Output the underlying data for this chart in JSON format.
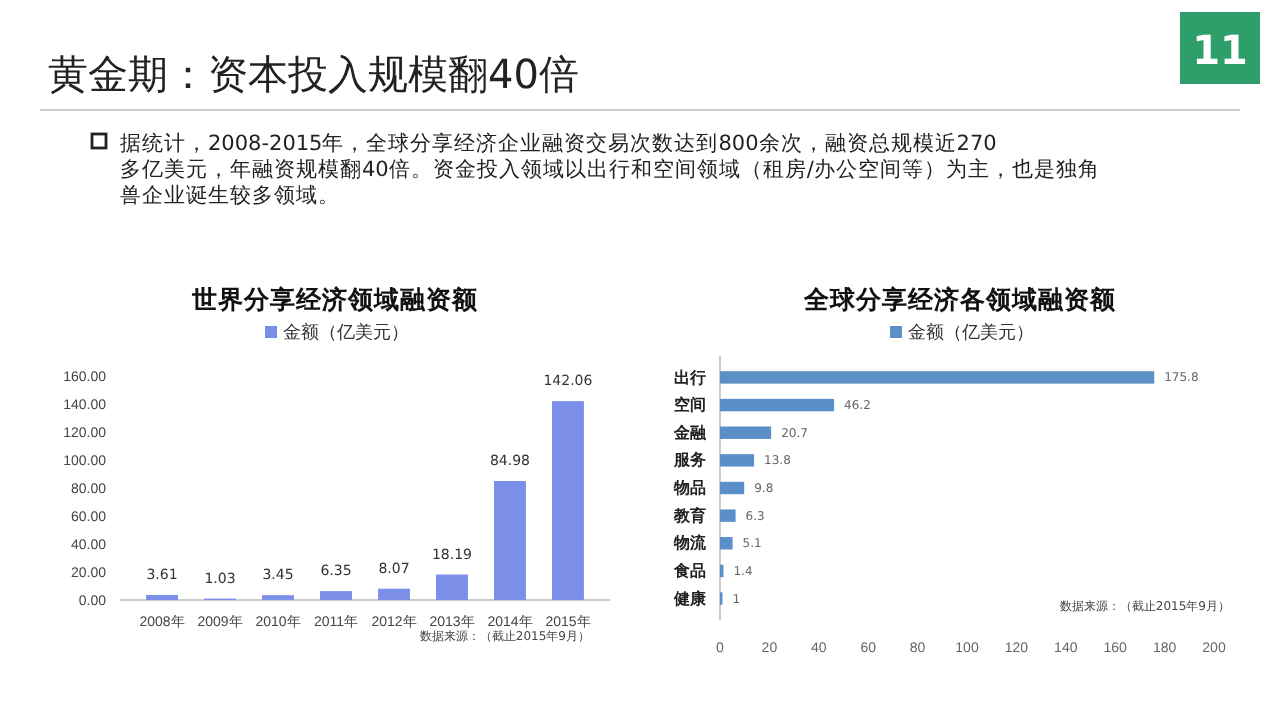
{
  "chart_data": [
    {
      "type": "other",
      "title": "黄金期：资本投入规模翻40倍",
      "annotations": [
        "据统计，2008-2015年，全球分享经济企业融资交易次数达到800余次，融资总规模近270多亿美元，年融资规模翻40倍。资金投入领域以出行和空间领域（租房/办公空间等）为主，也是独角兽企业诞生较多领域。",
        "11"
      ]
    },
    {
      "type": "bar",
      "title": "世界分享经济领域融资额",
      "categories": [
        "2008年",
        "2009年",
        "2010年",
        "2011年",
        "2012年",
        "2013年",
        "2014年",
        "2015年"
      ],
      "series": [
        {
          "name": "金额（亿美元）",
          "color": "#7b8ee8",
          "values": [
            3.61,
            1.03,
            3.45,
            6.35,
            8.07,
            18.19,
            84.98,
            142.06
          ]
        }
      ],
      "ylim": [
        0,
        160
      ],
      "yticks": [
        {
          "value": 0,
          "label": "0.00"
        },
        {
          "value": 20,
          "label": "20.00"
        },
        {
          "value": 40,
          "label": "40.00"
        },
        {
          "value": 60,
          "label": "60.00"
        },
        {
          "value": 80,
          "label": "80.00"
        },
        {
          "value": 100,
          "label": "100.00"
        },
        {
          "value": 120,
          "label": "120.00"
        },
        {
          "value": 140,
          "label": "140.00"
        },
        {
          "value": 160,
          "label": "160.00"
        }
      ],
      "data_labels": true,
      "legend": "top",
      "annotations": [
        "数据来源：（截止2015年9月）"
      ]
    },
    {
      "type": "bar",
      "orientation": "horizontal",
      "title": "全球分享经济各领域融资额",
      "categories": [
        "出行",
        "空间",
        "金融",
        "服务",
        "物品",
        "教育",
        "物流",
        "食品",
        "健康"
      ],
      "series": [
        {
          "name": "金额（亿美元）",
          "color": "#5b8fc7",
          "values": [
            175.8,
            46.2,
            20.7,
            13.8,
            9.8,
            6.3,
            5.1,
            1.4,
            1
          ]
        }
      ],
      "xlim": [
        0,
        200
      ],
      "xticks": [
        0,
        20,
        40,
        60,
        80,
        100,
        120,
        140,
        160,
        180,
        200
      ],
      "data_labels": true,
      "legend": "top",
      "annotations": [
        "数据来源：（截止2015年9月）"
      ]
    }
  ]
}
